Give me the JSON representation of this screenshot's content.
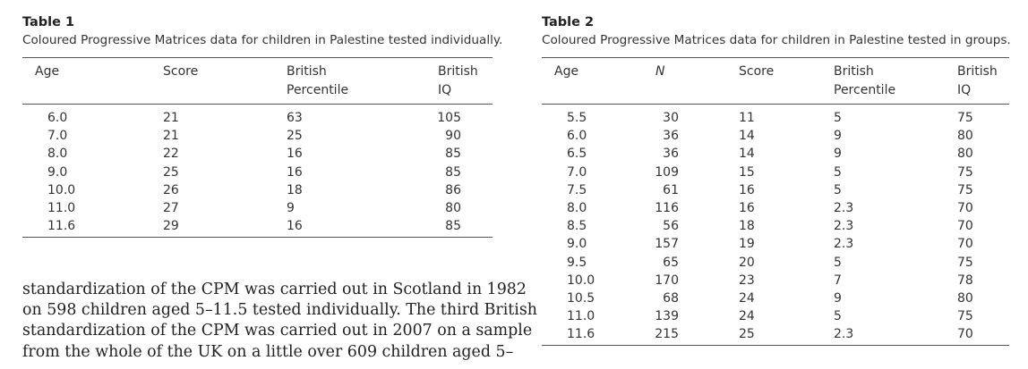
{
  "table1": {
    "label": "Table 1",
    "caption": "Coloured Progressive Matrices data for children in Palestine tested individually.",
    "headers": [
      {
        "l1": "Age",
        "l2": ""
      },
      {
        "l1": "Score",
        "l2": ""
      },
      {
        "l1": "British",
        "l2": "Percentile"
      },
      {
        "l1": "British",
        "l2": "IQ"
      }
    ],
    "rows": [
      [
        "6.0",
        "21",
        "63",
        "105"
      ],
      [
        "7.0",
        "21",
        "25",
        "90"
      ],
      [
        "8.0",
        "22",
        "16",
        "85"
      ],
      [
        "9.0",
        "25",
        "16",
        "85"
      ],
      [
        "10.0",
        "26",
        "18",
        "86"
      ],
      [
        "11.0",
        "27",
        "9",
        "80"
      ],
      [
        "11.6",
        "29",
        "16",
        "85"
      ]
    ]
  },
  "table2": {
    "label": "Table 2",
    "caption": "Coloured Progressive Matrices data for children in Palestine tested in groups.",
    "headers": [
      {
        "l1": "Age",
        "l2": ""
      },
      {
        "l1": "N",
        "l2": ""
      },
      {
        "l1": "Score",
        "l2": ""
      },
      {
        "l1": "British",
        "l2": "Percentile"
      },
      {
        "l1": "British",
        "l2": "IQ"
      }
    ],
    "rows": [
      [
        "5.5",
        "30",
        "11",
        "5",
        "75"
      ],
      [
        "6.0",
        "36",
        "14",
        "9",
        "80"
      ],
      [
        "6.5",
        "36",
        "14",
        "9",
        "80"
      ],
      [
        "7.0",
        "109",
        "15",
        "5",
        "75"
      ],
      [
        "7.5",
        "61",
        "16",
        "5",
        "75"
      ],
      [
        "8.0",
        "116",
        "16",
        "2.3",
        "70"
      ],
      [
        "8.5",
        "56",
        "18",
        "2.3",
        "70"
      ],
      [
        "9.0",
        "157",
        "19",
        "2.3",
        "70"
      ],
      [
        "9.5",
        "65",
        "20",
        "5",
        "75"
      ],
      [
        "10.0",
        "170",
        "23",
        "7",
        "78"
      ],
      [
        "10.5",
        "68",
        "24",
        "9",
        "80"
      ],
      [
        "11.0",
        "139",
        "24",
        "5",
        "75"
      ],
      [
        "11.6",
        "215",
        "25",
        "2.3",
        "70"
      ]
    ]
  },
  "paragraph": {
    "lines": [
      "standardization of the CPM was carried out in Scotland in 1982",
      "on 598 children aged 5–11.5 tested individually. The third British",
      "standardization of the CPM was carried out in 2007 on a sample",
      "from the whole of the UK on a little over 609 children aged 5–"
    ]
  }
}
